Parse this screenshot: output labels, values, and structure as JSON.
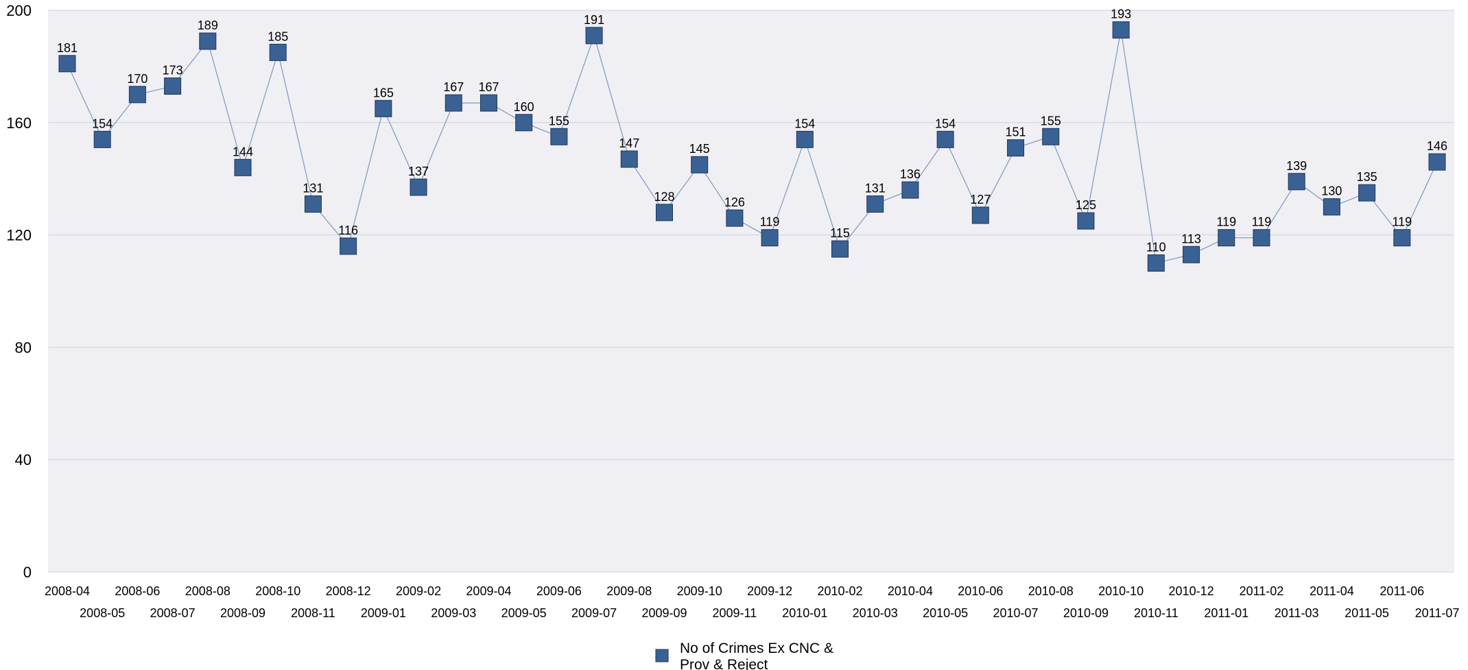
{
  "chart_data": {
    "type": "line",
    "title": "",
    "xlabel": "",
    "ylabel": "",
    "ylim": [
      0,
      200
    ],
    "yticks": [
      "0",
      "40",
      "80",
      "120",
      "160",
      "200"
    ],
    "grid": true,
    "legend_position": "bottom",
    "colors": {
      "plot_bg": "#efeff4",
      "grid": "#cfcfd8",
      "marker": "#3a6194",
      "marker_border": "#1f3558",
      "line": "#7f97bd"
    },
    "categories": [
      "2008-04",
      "2008-05",
      "2008-06",
      "2008-07",
      "2008-08",
      "2008-09",
      "2008-10",
      "2008-11",
      "2008-12",
      "2009-01",
      "2009-02",
      "2009-03",
      "2009-04",
      "2009-05",
      "2009-06",
      "2009-07",
      "2009-08",
      "2009-09",
      "2009-10",
      "2009-11",
      "2009-12",
      "2010-01",
      "2010-02",
      "2010-03",
      "2010-04",
      "2010-05",
      "2010-06",
      "2010-07",
      "2010-08",
      "2010-09",
      "2010-10",
      "2010-11",
      "2010-12",
      "2011-01",
      "2011-02",
      "2011-03",
      "2011-04",
      "2011-05",
      "2011-06",
      "2011-07"
    ],
    "series": [
      {
        "name": "No of Crimes Ex CNC & Prov & Reject",
        "name_lines": [
          "No of Crimes Ex CNC &",
          "Prov & Reject"
        ],
        "marker": "square-marker",
        "values": [
          181,
          154,
          170,
          173,
          189,
          144,
          185,
          131,
          116,
          165,
          137,
          167,
          167,
          160,
          155,
          191,
          147,
          128,
          145,
          126,
          119,
          154,
          115,
          131,
          136,
          154,
          127,
          151,
          155,
          125,
          193,
          110,
          113,
          119,
          119,
          139,
          130,
          135,
          119,
          146
        ]
      }
    ]
  }
}
